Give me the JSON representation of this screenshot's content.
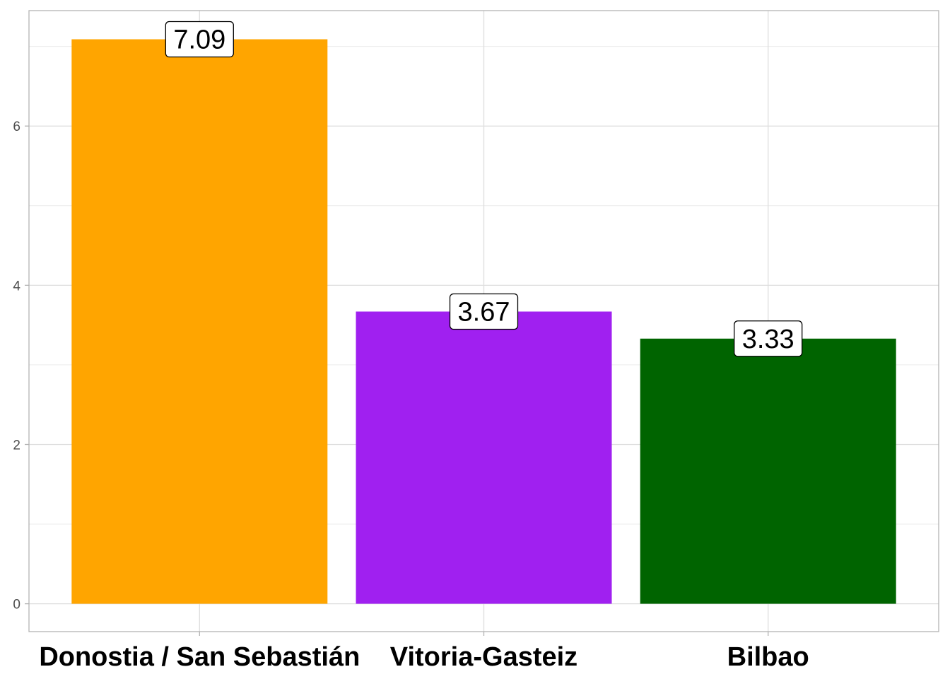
{
  "chart_data": {
    "type": "bar",
    "categories": [
      "Donostia / San Sebastián",
      "Vitoria-Gasteiz",
      "Bilbao"
    ],
    "values": [
      7.09,
      3.67,
      3.33
    ],
    "data_labels": [
      "7.09",
      "3.67",
      "3.33"
    ],
    "colors": [
      "#FFA500",
      "#A020F0",
      "#006400"
    ],
    "title": "",
    "xlabel": "",
    "ylabel": "",
    "ylim": [
      -0.35,
      7.45
    ],
    "yticks": [
      0,
      2,
      4,
      6
    ],
    "ytick_labels": [
      "0",
      "2",
      "4",
      "6"
    ],
    "grid": true,
    "legend": "none"
  }
}
